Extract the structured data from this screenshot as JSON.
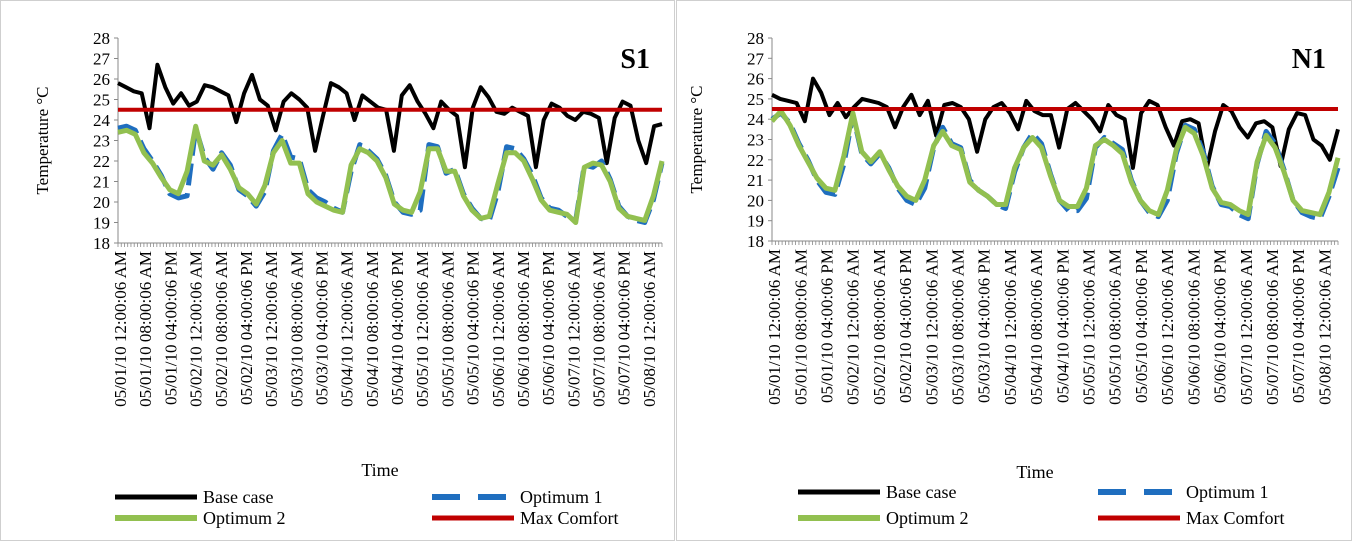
{
  "chart_data": [
    {
      "type": "line",
      "title": "S1",
      "xlabel": "Time",
      "ylabel": "Temperature °C",
      "ylim": [
        18,
        28
      ],
      "yticks": [
        18,
        19,
        20,
        21,
        22,
        23,
        24,
        25,
        26,
        27,
        28
      ],
      "grid": false,
      "legend_position": "bottom",
      "x_tick_labels": [
        "05/01/10 12:00:06 AM",
        "05/01/10 08:00:06 AM",
        "05/01/10 04:00:06 PM",
        "05/02/10 12:00:06 AM",
        "05/02/10 08:00:06 AM",
        "05/02/10 04:00:06 PM",
        "05/03/10 12:00:06 AM",
        "05/03/10 08:00:06 AM",
        "05/03/10 04:00:06 PM",
        "05/04/10 12:00:06 AM",
        "05/04/10 08:00:06 AM",
        "05/04/10 04:00:06 PM",
        "05/05/10 12:00:06 AM",
        "05/05/10 08:00:06 AM",
        "05/05/10 04:00:06 PM",
        "05/06/10 12:00:06 AM",
        "05/06/10 08:00:06 AM",
        "05/06/10 04:00:06 PM",
        "05/07/10 12:00:06 AM",
        "05/07/10 08:00:06 AM",
        "05/07/10 04:00:06 PM",
        "05/08/10 12:00:06 AM"
      ],
      "series": [
        {
          "name": "Base case",
          "color": "#000000",
          "style": "solid",
          "values": [
            25.8,
            25.6,
            25.4,
            25.3,
            23.6,
            26.7,
            25.6,
            24.8,
            25.3,
            24.7,
            24.9,
            25.7,
            25.6,
            25.4,
            25.2,
            23.9,
            25.3,
            26.2,
            25.0,
            24.7,
            23.5,
            24.9,
            25.3,
            25.0,
            24.6,
            22.5,
            24.2,
            25.8,
            25.6,
            25.3,
            24.0,
            25.2,
            24.9,
            24.6,
            24.5,
            22.5,
            25.2,
            25.7,
            24.9,
            24.3,
            23.6,
            24.9,
            24.5,
            24.2,
            21.7,
            24.6,
            25.6,
            25.1,
            24.4,
            24.3,
            24.6,
            24.4,
            24.2,
            21.7,
            24.0,
            24.8,
            24.6,
            24.2,
            24.0,
            24.4,
            24.3,
            24.1,
            21.9,
            24.1,
            24.9,
            24.7,
            23.0,
            21.9,
            23.7,
            23.8
          ]
        },
        {
          "name": "Optimum 1",
          "color": "#1f6ebf",
          "style": "dashed",
          "values": [
            23.6,
            23.7,
            23.5,
            22.6,
            22.0,
            21.3,
            20.4,
            20.2,
            20.3,
            23.6,
            22.2,
            21.6,
            22.4,
            21.8,
            20.6,
            20.3,
            19.8,
            20.5,
            22.5,
            23.3,
            22.2,
            22.1,
            20.6,
            20.2,
            20.0,
            19.7,
            19.5,
            21.5,
            22.8,
            22.5,
            22.1,
            21.3,
            20.0,
            19.5,
            19.4,
            19.6,
            22.8,
            22.7,
            21.4,
            21.6,
            20.4,
            19.7,
            19.2,
            19.1,
            20.5,
            22.7,
            22.6,
            22.1,
            21.3,
            20.2,
            19.7,
            19.6,
            19.3,
            19.1,
            21.8,
            21.7,
            22.0,
            21.1,
            19.8,
            19.3,
            19.1,
            19.0,
            20.1,
            21.9
          ]
        },
        {
          "name": "Optimum 2",
          "color": "#92c050",
          "style": "solid",
          "values": [
            23.4,
            23.5,
            23.3,
            22.4,
            21.9,
            21.2,
            20.6,
            20.4,
            21.5,
            23.7,
            22.0,
            21.8,
            22.3,
            21.6,
            20.7,
            20.4,
            19.9,
            20.8,
            22.4,
            23.0,
            21.9,
            21.9,
            20.4,
            20.0,
            19.8,
            19.6,
            19.5,
            21.8,
            22.6,
            22.4,
            22.0,
            21.2,
            19.9,
            19.6,
            19.5,
            20.5,
            22.6,
            22.6,
            21.5,
            21.5,
            20.3,
            19.6,
            19.2,
            19.3,
            20.9,
            22.4,
            22.4,
            22.0,
            21.1,
            20.1,
            19.6,
            19.5,
            19.4,
            19.0,
            21.7,
            21.9,
            21.8,
            21.0,
            19.7,
            19.3,
            19.2,
            19.1,
            20.3,
            22.0
          ]
        },
        {
          "name": "Max Comfort",
          "color": "#c00000",
          "style": "solid",
          "values": [
            24.5,
            24.5
          ]
        }
      ]
    },
    {
      "type": "line",
      "title": "N1",
      "xlabel": "Time",
      "ylabel": "Temperature °C",
      "ylim": [
        18,
        28
      ],
      "yticks": [
        18,
        19,
        20,
        21,
        22,
        23,
        24,
        25,
        26,
        27,
        28
      ],
      "grid": false,
      "legend_position": "bottom",
      "x_tick_labels": [
        "05/01/10 12:00:06 AM",
        "05/01/10 08:00:06 AM",
        "05/01/10 04:00:06 PM",
        "05/02/10 12:00:06 AM",
        "05/02/10 08:00:06 AM",
        "05/02/10 04:00:06 PM",
        "05/03/10 12:00:06 AM",
        "05/03/10 08:00:06 AM",
        "05/03/10 04:00:06 PM",
        "05/04/10 12:00:06 AM",
        "05/04/10 08:00:06 AM",
        "05/04/10 04:00:06 PM",
        "05/05/10 12:00:06 AM",
        "05/05/10 08:00:06 AM",
        "05/05/10 04:00:06 PM",
        "05/06/10 12:00:06 AM",
        "05/06/10 08:00:06 AM",
        "05/06/10 04:00:06 PM",
        "05/07/10 12:00:06 AM",
        "05/07/10 08:00:06 AM",
        "05/07/10 04:00:06 PM",
        "05/08/10 12:00:06 AM"
      ],
      "series": [
        {
          "name": "Base case",
          "color": "#000000",
          "style": "solid",
          "values": [
            25.2,
            25.0,
            24.9,
            24.8,
            23.9,
            26.0,
            25.3,
            24.2,
            24.8,
            24.1,
            24.6,
            25.0,
            24.9,
            24.8,
            24.6,
            23.6,
            24.6,
            25.2,
            24.2,
            24.9,
            23.2,
            24.7,
            24.8,
            24.6,
            24.0,
            22.4,
            24.0,
            24.6,
            24.8,
            24.3,
            23.5,
            24.9,
            24.4,
            24.2,
            24.2,
            22.6,
            24.5,
            24.8,
            24.4,
            24.0,
            23.4,
            24.7,
            24.2,
            24.0,
            21.6,
            24.3,
            24.9,
            24.7,
            23.6,
            22.7,
            23.9,
            24.0,
            23.8,
            21.6,
            23.4,
            24.7,
            24.4,
            23.6,
            23.1,
            23.8,
            23.9,
            23.6,
            21.7,
            23.5,
            24.3,
            24.2,
            23.0,
            22.7,
            22.0,
            23.5
          ]
        },
        {
          "name": "Optimum 1",
          "color": "#1f6ebf",
          "style": "dashed",
          "values": [
            24.0,
            24.3,
            23.8,
            22.8,
            22.0,
            21.0,
            20.4,
            20.3,
            21.8,
            24.2,
            22.3,
            21.8,
            22.3,
            21.6,
            20.6,
            20.0,
            19.8,
            20.6,
            22.6,
            23.6,
            22.8,
            22.6,
            21.0,
            20.5,
            20.2,
            19.8,
            19.6,
            21.4,
            22.6,
            23.3,
            22.8,
            21.3,
            20.0,
            19.5,
            19.5,
            20.1,
            22.6,
            23.1,
            22.8,
            22.5,
            21.0,
            20.0,
            19.4,
            19.2,
            20.0,
            22.3,
            23.7,
            23.5,
            22.4,
            20.7,
            19.8,
            19.7,
            19.3,
            19.1,
            21.8,
            23.4,
            22.8,
            21.5,
            20.0,
            19.4,
            19.2,
            19.1,
            20.2,
            21.6
          ]
        },
        {
          "name": "Optimum 2",
          "color": "#92c050",
          "style": "solid",
          "values": [
            23.9,
            24.4,
            23.7,
            22.7,
            21.9,
            21.1,
            20.6,
            20.5,
            22.2,
            24.3,
            22.4,
            21.9,
            22.4,
            21.5,
            20.7,
            20.2,
            20.0,
            21.0,
            22.7,
            23.4,
            22.7,
            22.5,
            20.9,
            20.5,
            20.2,
            19.8,
            19.8,
            21.6,
            22.6,
            23.1,
            22.6,
            21.2,
            20.0,
            19.7,
            19.7,
            20.6,
            22.7,
            23.0,
            22.7,
            22.3,
            20.9,
            20.0,
            19.5,
            19.3,
            20.5,
            22.5,
            23.6,
            23.3,
            22.2,
            20.6,
            19.9,
            19.8,
            19.5,
            19.3,
            21.9,
            23.2,
            22.6,
            21.4,
            20.0,
            19.5,
            19.4,
            19.3,
            20.4,
            22.1
          ]
        },
        {
          "name": "Max Comfort",
          "color": "#c00000",
          "style": "solid",
          "values": [
            24.5,
            24.5
          ]
        }
      ]
    }
  ]
}
